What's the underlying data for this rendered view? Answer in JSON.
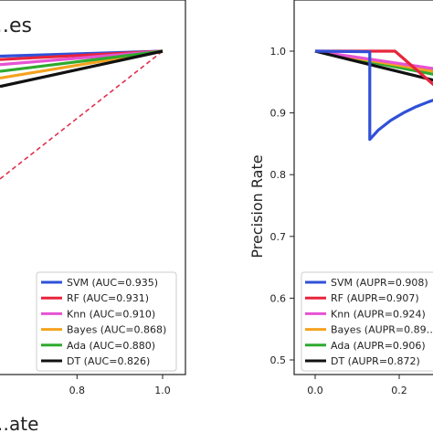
{
  "colors": {
    "SVM": "#3050d8",
    "RF": "#e8243c",
    "Knn": "#e653d2",
    "Bayes": "#f4a21e",
    "Ada": "#2eaa2e",
    "DT": "#111111",
    "chance": "#e03050"
  },
  "chart_data": [
    {
      "type": "line",
      "title": "…es",
      "xlabel": "…ate",
      "ylabel": "",
      "xlim": [
        0.62,
        1.0
      ],
      "ylim": [
        0.0,
        1.0
      ],
      "xticks": [
        0.8,
        1.0
      ],
      "xtick_labels": [
        "0.8",
        "1.0"
      ],
      "grid": false,
      "legend_position": "lower-right",
      "series": [
        {
          "key": "SVM",
          "name": "SVM (AUC=0.935)",
          "x": [
            0.62,
            1.0
          ],
          "y": [
            0.985,
            1.0
          ]
        },
        {
          "key": "RF",
          "name": "RF (AUC=0.931)",
          "x": [
            0.62,
            1.0
          ],
          "y": [
            0.975,
            1.0
          ]
        },
        {
          "key": "Knn",
          "name": "Knn (AUC=0.910)",
          "x": [
            0.62,
            1.0
          ],
          "y": [
            0.96,
            1.0
          ]
        },
        {
          "key": "Bayes",
          "name": "Bayes (AUC=0.868)",
          "x": [
            0.62,
            1.0
          ],
          "y": [
            0.92,
            1.0
          ]
        },
        {
          "key": "Ada",
          "name": "Ada (AUC=0.880)",
          "x": [
            0.62,
            1.0
          ],
          "y": [
            0.94,
            1.0
          ]
        },
        {
          "key": "DT",
          "name": "DT (AUC=0.826)",
          "x": [
            0.62,
            1.0
          ],
          "y": [
            0.895,
            1.0
          ]
        }
      ],
      "reference_line": {
        "key": "chance",
        "x": [
          0.62,
          1.0
        ],
        "y": [
          0.62,
          1.0
        ]
      }
    },
    {
      "type": "line",
      "title": "",
      "xlabel": "",
      "ylabel": "Precision Rate",
      "xlim": [
        -0.05,
        0.65
      ],
      "ylim": [
        0.485,
        1.04
      ],
      "xticks": [
        0.0,
        0.2
      ],
      "xtick_labels": [
        "0.0",
        "0.2"
      ],
      "yticks": [
        0.5,
        0.6,
        0.7,
        0.8,
        0.9,
        1.0
      ],
      "ytick_labels": [
        "0.5",
        "0.6",
        "0.7",
        "0.8",
        "0.9",
        "1.0"
      ],
      "grid": false,
      "legend_position": "lower-right",
      "series": [
        {
          "key": "SVM",
          "name": "SVM (AUPR=0.908)",
          "x": [
            0.0,
            0.13,
            0.13,
            0.15,
            0.18,
            0.21,
            0.24,
            0.27,
            0.3,
            0.33
          ],
          "y": [
            1.0,
            0.999,
            0.857,
            0.872,
            0.888,
            0.9,
            0.91,
            0.918,
            0.925,
            0.93
          ]
        },
        {
          "key": "RF",
          "name": "RF (AUPR=0.907)",
          "x": [
            0.0,
            0.19,
            0.3,
            0.45
          ],
          "y": [
            1.0,
            1.0,
            0.935,
            0.85
          ]
        },
        {
          "key": "Knn",
          "name": "Knn (AUPR=0.924)",
          "x": [
            0.0,
            0.45
          ],
          "y": [
            1.0,
            0.955
          ]
        },
        {
          "key": "Bayes",
          "name": "Bayes (AUPR=0.89…",
          "x": [
            0.0,
            0.45
          ],
          "y": [
            1.0,
            0.948
          ]
        },
        {
          "key": "Ada",
          "name": "Ada (AUPR=0.906)",
          "x": [
            0.0,
            0.45
          ],
          "y": [
            1.0,
            0.94
          ]
        },
        {
          "key": "DT",
          "name": "DT (AUPR=0.872)",
          "x": [
            0.0,
            0.45
          ],
          "y": [
            1.0,
            0.925
          ]
        }
      ]
    }
  ]
}
